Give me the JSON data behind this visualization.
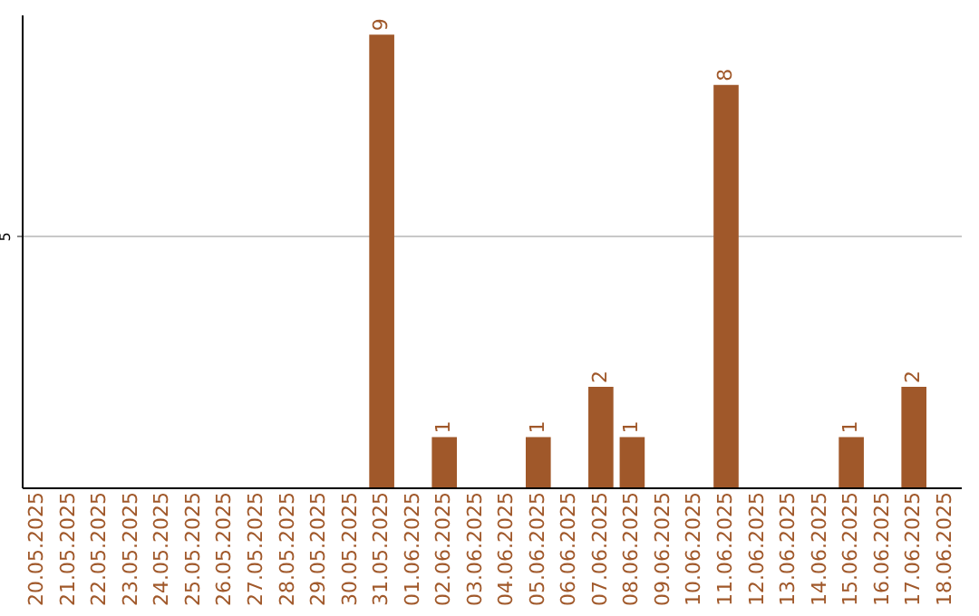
{
  "chart_data": {
    "type": "bar",
    "categories": [
      "20.05.2025",
      "21.05.2025",
      "22.05.2025",
      "23.05.2025",
      "24.05.2025",
      "25.05.2025",
      "26.05.2025",
      "27.05.2025",
      "28.05.2025",
      "29.05.2025",
      "30.05.2025",
      "31.05.2025",
      "01.06.2025",
      "02.06.2025",
      "03.06.2025",
      "04.06.2025",
      "05.06.2025",
      "06.06.2025",
      "07.06.2025",
      "08.06.2025",
      "09.06.2025",
      "10.06.2025",
      "11.06.2025",
      "12.06.2025",
      "13.06.2025",
      "14.06.2025",
      "15.06.2025",
      "16.06.2025",
      "17.06.2025",
      "18.06.2025"
    ],
    "values": [
      0,
      0,
      0,
      0,
      0,
      0,
      0,
      0,
      0,
      0,
      0,
      9,
      0,
      1,
      0,
      0,
      1,
      0,
      2,
      1,
      0,
      0,
      8,
      0,
      0,
      0,
      1,
      0,
      2,
      0
    ],
    "value_labels": [
      null,
      null,
      null,
      null,
      null,
      null,
      null,
      null,
      null,
      null,
      null,
      "9",
      null,
      "1",
      null,
      null,
      "1",
      null,
      "2",
      "1",
      null,
      null,
      "8",
      null,
      null,
      null,
      "1",
      null,
      "2",
      null
    ],
    "color": "#a0582a",
    "ylim": [
      0,
      9.4
    ],
    "yticks": [
      5
    ],
    "grid": "y"
  }
}
